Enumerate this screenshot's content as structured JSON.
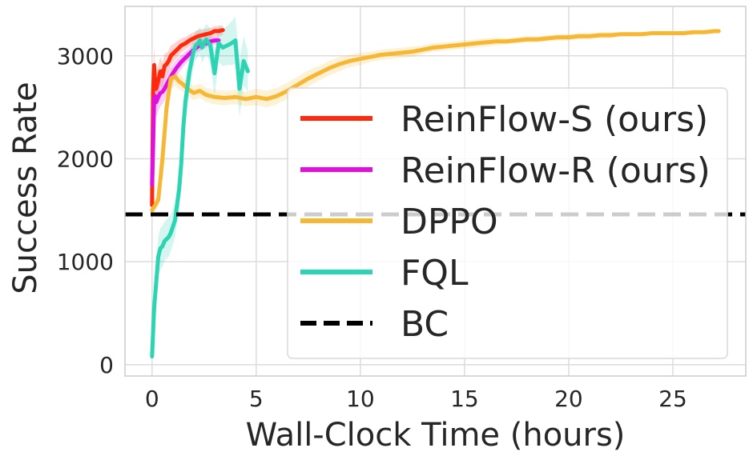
{
  "chart_data": {
    "type": "line",
    "title": "",
    "xlabel": "Wall-Clock Time (hours)",
    "ylabel": "Success Rate",
    "xlim": [
      -1.3,
      28.5
    ],
    "ylim": [
      -110,
      3480
    ],
    "xticks": [
      0,
      5,
      10,
      15,
      20,
      25
    ],
    "yticks": [
      0,
      1000,
      2000,
      3000
    ],
    "grid": true,
    "legend_position": "right",
    "series": [
      {
        "name": "ReinFlow-S (ours)",
        "color": "#ff2a0e",
        "x": [
          0.0,
          0.05,
          0.1,
          0.15,
          0.2,
          0.3,
          0.4,
          0.5,
          0.6,
          0.7,
          0.8,
          0.9,
          1.0,
          1.2,
          1.4,
          1.6,
          1.8,
          2.0,
          2.2,
          2.4,
          2.6,
          2.8,
          3.0,
          3.2,
          3.4
        ],
        "y": [
          1550,
          2650,
          2910,
          2700,
          2680,
          2760,
          2850,
          2800,
          2900,
          2920,
          2950,
          3000,
          3020,
          3060,
          3100,
          3120,
          3150,
          3170,
          3190,
          3200,
          3210,
          3220,
          3240,
          3240,
          3250
        ],
        "band": [
          20,
          160,
          180,
          180,
          170,
          150,
          140,
          130,
          120,
          110,
          100,
          100,
          90,
          80,
          70,
          60,
          60,
          60,
          60,
          60,
          50,
          50,
          50,
          50,
          50
        ]
      },
      {
        "name": "ReinFlow-R (ours)",
        "color": "#e010e0",
        "x": [
          0.0,
          0.05,
          0.1,
          0.15,
          0.2,
          0.3,
          0.4,
          0.5,
          0.6,
          0.7,
          0.8,
          1.0,
          1.2,
          1.4,
          1.6,
          1.8,
          2.0,
          2.2,
          2.4,
          2.6,
          2.8,
          3.0,
          3.2
        ],
        "y": [
          1750,
          2100,
          2590,
          2610,
          2550,
          2600,
          2640,
          2650,
          2680,
          2720,
          2760,
          2830,
          2890,
          2940,
          2980,
          3020,
          3060,
          3090,
          3110,
          3120,
          3140,
          3150,
          3150
        ],
        "band": [
          100,
          150,
          160,
          160,
          150,
          140,
          130,
          120,
          110,
          100,
          100,
          90,
          80,
          70,
          60,
          60,
          50,
          50,
          50,
          40,
          40,
          40,
          40
        ]
      },
      {
        "name": "DPPO",
        "color": "#f7b733",
        "x": [
          0.0,
          0.3,
          0.5,
          0.7,
          0.9,
          1.1,
          1.3,
          1.5,
          1.7,
          2.0,
          2.3,
          2.6,
          3.0,
          3.5,
          4.0,
          4.5,
          5.0,
          5.5,
          6.0,
          6.5,
          7.0,
          7.5,
          8.0,
          8.5,
          9.0,
          9.5,
          10.0,
          10.5,
          11.0,
          11.5,
          12.0,
          12.5,
          13.0,
          13.5,
          14.0,
          14.5,
          15.0,
          15.5,
          16.0,
          16.5,
          17.0,
          17.5,
          18.0,
          18.5,
          19.0,
          19.5,
          20.0,
          20.5,
          21.0,
          21.5,
          22.0,
          22.5,
          23.0,
          23.5,
          24.0,
          24.5,
          25.0,
          25.5,
          26.0,
          26.5,
          27.0,
          27.2
        ],
        "y": [
          1500,
          1600,
          2000,
          2500,
          2780,
          2800,
          2750,
          2720,
          2680,
          2640,
          2660,
          2620,
          2600,
          2590,
          2600,
          2580,
          2600,
          2580,
          2610,
          2660,
          2720,
          2780,
          2830,
          2880,
          2920,
          2950,
          2970,
          2990,
          3010,
          3020,
          3030,
          3040,
          3060,
          3080,
          3090,
          3100,
          3110,
          3120,
          3130,
          3140,
          3140,
          3150,
          3160,
          3160,
          3170,
          3180,
          3180,
          3190,
          3190,
          3200,
          3200,
          3210,
          3210,
          3210,
          3220,
          3220,
          3220,
          3220,
          3230,
          3230,
          3240,
          3240
        ],
        "band": [
          40,
          60,
          80,
          100,
          100,
          90,
          80,
          70,
          70,
          70,
          70,
          70,
          70,
          70,
          70,
          70,
          80,
          80,
          80,
          80,
          80,
          80,
          70,
          70,
          70,
          60,
          60,
          50,
          50,
          50,
          50,
          50,
          40,
          40,
          40,
          40,
          40,
          40,
          40,
          40,
          30,
          30,
          30,
          30,
          30,
          30,
          30,
          30,
          30,
          30,
          30,
          20,
          20,
          20,
          20,
          20,
          20,
          20,
          20,
          20,
          20,
          20
        ]
      },
      {
        "name": "FQL",
        "color": "#2dd4b4",
        "x": [
          0.0,
          0.1,
          0.2,
          0.3,
          0.4,
          0.5,
          0.6,
          0.7,
          0.8,
          0.9,
          1.0,
          1.1,
          1.2,
          1.3,
          1.4,
          1.5,
          1.6,
          1.7,
          1.8,
          1.9,
          2.0,
          2.1,
          2.2,
          2.3,
          2.4,
          2.6,
          2.8,
          3.0,
          3.2,
          3.4,
          3.6,
          3.8,
          4.0,
          4.2,
          4.4,
          4.6
        ],
        "y": [
          80,
          550,
          800,
          1050,
          1130,
          1150,
          1200,
          1220,
          1240,
          1280,
          1340,
          1400,
          1550,
          1700,
          1950,
          2300,
          2550,
          2700,
          2850,
          2950,
          3050,
          3100,
          3120,
          3150,
          3080,
          3160,
          3100,
          2830,
          3120,
          3080,
          3100,
          3120,
          3150,
          2680,
          2950,
          2850
        ],
        "band": [
          20,
          150,
          180,
          200,
          200,
          200,
          190,
          190,
          190,
          180,
          170,
          170,
          180,
          200,
          220,
          230,
          220,
          200,
          180,
          170,
          150,
          140,
          130,
          130,
          150,
          150,
          170,
          220,
          180,
          180,
          190,
          210,
          230,
          280,
          240,
          200
        ]
      }
    ],
    "reference_lines": [
      {
        "name": "BC",
        "color": "#000000",
        "y": 1460,
        "style": "dashed"
      }
    ]
  }
}
